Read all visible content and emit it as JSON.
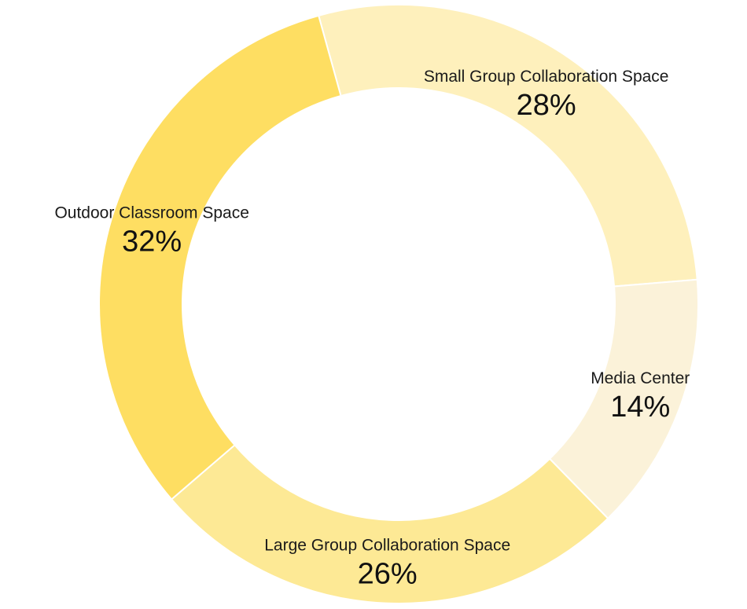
{
  "chart_data": {
    "type": "pie",
    "variant": "donut",
    "start": "top",
    "direction": "clockwise",
    "legend": "none",
    "slices": [
      {
        "label": "Small Group Collaboration Space",
        "value": 28,
        "value_label": "28%",
        "color": "#FEF0BC"
      },
      {
        "label": "Media Center",
        "value": 14,
        "value_label": "14%",
        "color": "#FBF2D9"
      },
      {
        "label": "Large Group Collaboration Space",
        "value": 26,
        "value_label": "26%",
        "color": "#FDE995"
      },
      {
        "label": "Outdoor Classroom Space",
        "value": 32,
        "value_label": "32%",
        "color": "#FEDE62"
      }
    ]
  }
}
